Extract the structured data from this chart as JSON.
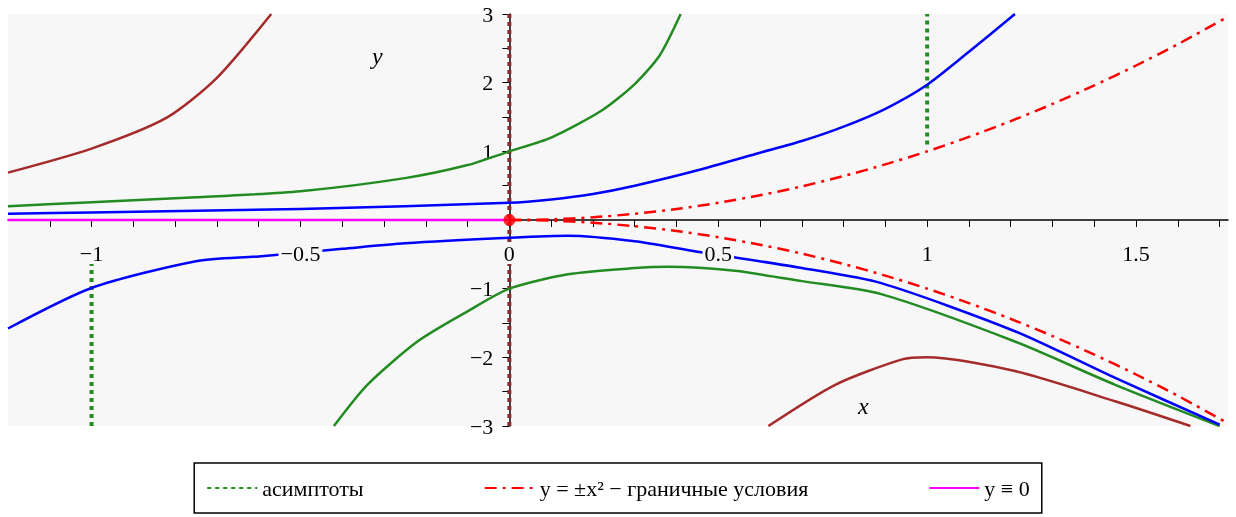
{
  "chart_data": {
    "type": "line",
    "xlabel": "x",
    "ylabel": "y",
    "xlim": [
      -1.2,
      1.72
    ],
    "ylim": [
      -3,
      3
    ],
    "xticks": [
      {
        "value": -1.1,
        "label": null
      },
      -1,
      {
        "value": -0.9,
        "label": null
      },
      {
        "value": -0.8,
        "label": null
      },
      {
        "value": -0.7,
        "label": null
      },
      {
        "value": -0.6,
        "label": null
      },
      -0.5,
      {
        "value": -0.4,
        "label": null
      },
      {
        "value": -0.3,
        "label": null
      },
      {
        "value": -0.2,
        "label": null
      },
      {
        "value": -0.1,
        "label": null
      },
      0,
      {
        "value": 0.1,
        "label": null
      },
      {
        "value": 0.2,
        "label": null
      },
      {
        "value": 0.3,
        "label": null
      },
      {
        "value": 0.4,
        "label": null
      },
      0.5,
      {
        "value": 0.6,
        "label": null
      },
      {
        "value": 0.7,
        "label": null
      },
      {
        "value": 0.8,
        "label": null
      },
      {
        "value": 0.9,
        "label": null
      },
      1,
      {
        "value": 1.1,
        "label": null
      },
      {
        "value": 1.2,
        "label": null
      },
      {
        "value": 1.3,
        "label": null
      },
      {
        "value": 1.4,
        "label": null
      },
      1.5,
      {
        "value": 1.6,
        "label": null
      },
      {
        "value": 1.7,
        "label": null
      }
    ],
    "yticks": [
      -3,
      {
        "value": -2.5,
        "label": null
      },
      -2,
      {
        "value": -1.5,
        "label": null
      },
      -1,
      {
        "value": -0.5,
        "label": null
      },
      {
        "value": 0,
        "label": null
      },
      {
        "value": 0.5,
        "label": null
      },
      1,
      {
        "value": 1.5,
        "label": null
      },
      2,
      {
        "value": 2.5,
        "label": null
      },
      3
    ],
    "grid": false,
    "legend": "bottom",
    "marker": "none",
    "series": [
      {
        "name": "асимптоты",
        "color": "#228b22",
        "line_style": "dotted",
        "x": [
          1,
          1
        ],
        "values": [
          1.1,
          3
        ]
      },
      {
        "color": "#228b22",
        "line_style": "dotted",
        "x": [
          -1,
          -1,
          -1
        ],
        "values": [
          -3,
          -1.75,
          -0.5
        ]
      },
      {
        "name": "y = ±x² − граничные условия",
        "color": "#ff0000",
        "line_style": "dashed",
        "x": [
          0,
          0.1,
          0.2,
          0.3,
          0.4,
          0.5,
          0.6,
          0.7,
          0.8,
          0.9,
          1,
          1.1,
          1.2,
          1.3,
          1.4,
          1.5,
          1.6,
          1.72
        ],
        "values": [
          0,
          0.01,
          0.04,
          0.09,
          0.16,
          0.25,
          0.36,
          0.49,
          0.64,
          0.81,
          1,
          1.21,
          1.44,
          1.69,
          1.96,
          2.25,
          2.56,
          2.96
        ]
      },
      {
        "color": "#ff0000",
        "line_style": "dashed",
        "x": [
          0,
          0.1,
          0.2,
          0.3,
          0.4,
          0.5,
          0.6,
          0.7,
          0.8,
          0.9,
          1,
          1.1,
          1.2,
          1.3,
          1.4,
          1.5,
          1.6,
          1.72
        ],
        "values": [
          0,
          -0.01,
          -0.04,
          -0.09,
          -0.16,
          -0.25,
          -0.36,
          -0.49,
          -0.64,
          -0.81,
          -1,
          -1.21,
          -1.44,
          -1.69,
          -1.96,
          -2.25,
          -2.56,
          -2.96
        ]
      },
      {
        "name": "y ≡ 0",
        "color": "#ff00ff",
        "line_style": "solid",
        "x": [
          -1.2,
          0
        ],
        "values": [
          0,
          0
        ]
      },
      {
        "color": "#8b2a2a",
        "line_style": "dotted",
        "x": [
          0,
          0
        ],
        "values": [
          -3,
          3
        ]
      },
      {
        "color": "#228b22",
        "line_style": "solid",
        "x": [
          -1.2,
          -1,
          -0.75,
          -0.5,
          -0.25,
          -0.1,
          0,
          0.1,
          0.22,
          0.3,
          0.36,
          0.41
        ],
        "values": [
          0.2,
          0.26,
          0.33,
          0.42,
          0.61,
          0.8,
          1,
          1.2,
          1.59,
          1.98,
          2.4,
          3
        ]
      },
      {
        "color": "#228b22",
        "line_style": "solid",
        "x": [
          -0.42,
          -0.34,
          -0.22,
          -0.1,
          0,
          0.14,
          0.3,
          0.38,
          0.54,
          0.7,
          0.89,
          1.21,
          1.45,
          1.7
        ],
        "values": [
          -3,
          -2.4,
          -1.77,
          -1.33,
          -1,
          -0.79,
          -0.7,
          -0.68,
          -0.74,
          -0.89,
          -1.08,
          -1.77,
          -2.4,
          -3
        ]
      },
      {
        "color": "#0000ff",
        "line_style": "solid",
        "x": [
          -1.2,
          -1,
          -0.5,
          0,
          0.1,
          0.2,
          0.3,
          0.46,
          0.6,
          0.7,
          0.8,
          0.9,
          1,
          1.1,
          1.21
        ],
        "values": [
          0.09,
          0.11,
          0.16,
          0.25,
          0.3,
          0.38,
          0.5,
          0.74,
          0.98,
          1.15,
          1.36,
          1.62,
          1.97,
          2.45,
          3
        ]
      },
      {
        "color": "#0000ff",
        "line_style": "solid",
        "x": [
          -1.2,
          -1,
          -0.75,
          -0.6,
          -0.4,
          -0.25,
          0,
          0.14,
          0.3,
          0.44,
          0.7,
          0.89,
          1.21,
          1.45,
          1.7
        ],
        "values": [
          -1.58,
          -0.99,
          -0.6,
          -0.53,
          -0.42,
          -0.34,
          -0.26,
          -0.23,
          -0.31,
          -0.45,
          -0.7,
          -0.92,
          -1.62,
          -2.3,
          -2.98
        ]
      },
      {
        "color": "#a52a2a",
        "line_style": "solid",
        "x": [
          -1.2,
          -1,
          -0.82,
          -0.7,
          -0.57
        ],
        "values": [
          0.69,
          1.04,
          1.49,
          2.07,
          3
        ]
      },
      {
        "color": "#a52a2a",
        "line_style": "solid",
        "x": [
          0.62,
          0.78,
          0.94,
          1,
          1.21,
          1.45,
          1.63
        ],
        "values": [
          -3,
          -2.4,
          -2.03,
          -2,
          -2.2,
          -2.64,
          -3
        ]
      },
      {
        "type": "scatter",
        "marker": "circle",
        "color": "#ff0000",
        "x": [
          0
        ],
        "values": [
          0
        ]
      }
    ]
  }
}
